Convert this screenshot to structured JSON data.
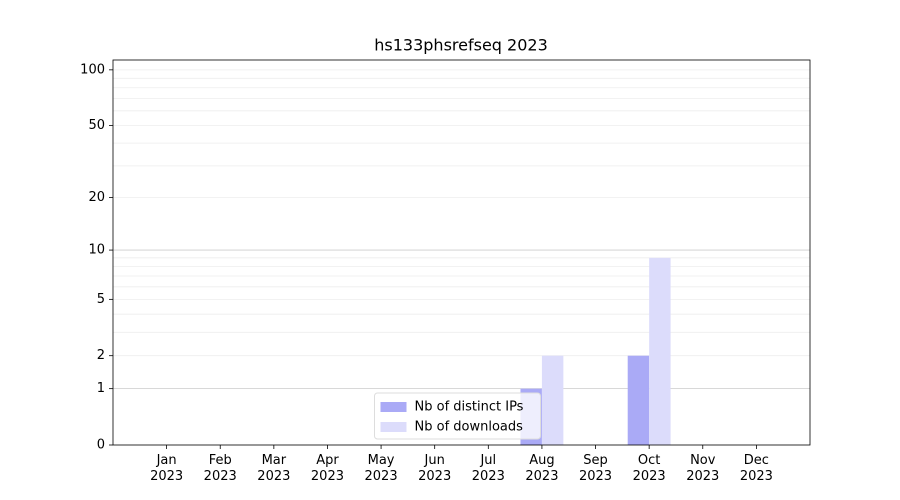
{
  "chart_data": {
    "type": "bar",
    "title": "hs133phsrefseq 2023",
    "categories": [
      "Jan\n2023",
      "Feb\n2023",
      "Mar\n2023",
      "Apr\n2023",
      "May\n2023",
      "Jun\n2023",
      "Jul\n2023",
      "Aug\n2023",
      "Sep\n2023",
      "Oct\n2023",
      "Nov\n2023",
      "Dec\n2023"
    ],
    "series": [
      {
        "name": "Nb of distinct IPs",
        "color": "#aaaaf6",
        "values": [
          0,
          0,
          0,
          0,
          0,
          0,
          0,
          1,
          0,
          2,
          0,
          0
        ]
      },
      {
        "name": "Nb of downloads",
        "color": "#dcdcfb",
        "values": [
          0,
          0,
          0,
          0,
          0,
          0,
          0,
          2,
          0,
          9,
          0,
          0
        ]
      }
    ],
    "yscale": "log1p",
    "ylim": [
      0,
      113
    ],
    "yticks": [
      0,
      1,
      2,
      5,
      10,
      20,
      50,
      100
    ],
    "minor_yticks": [
      3,
      4,
      6,
      7,
      8,
      9,
      30,
      40,
      60,
      70,
      80,
      90
    ],
    "grid": true,
    "legend": "lower center"
  }
}
